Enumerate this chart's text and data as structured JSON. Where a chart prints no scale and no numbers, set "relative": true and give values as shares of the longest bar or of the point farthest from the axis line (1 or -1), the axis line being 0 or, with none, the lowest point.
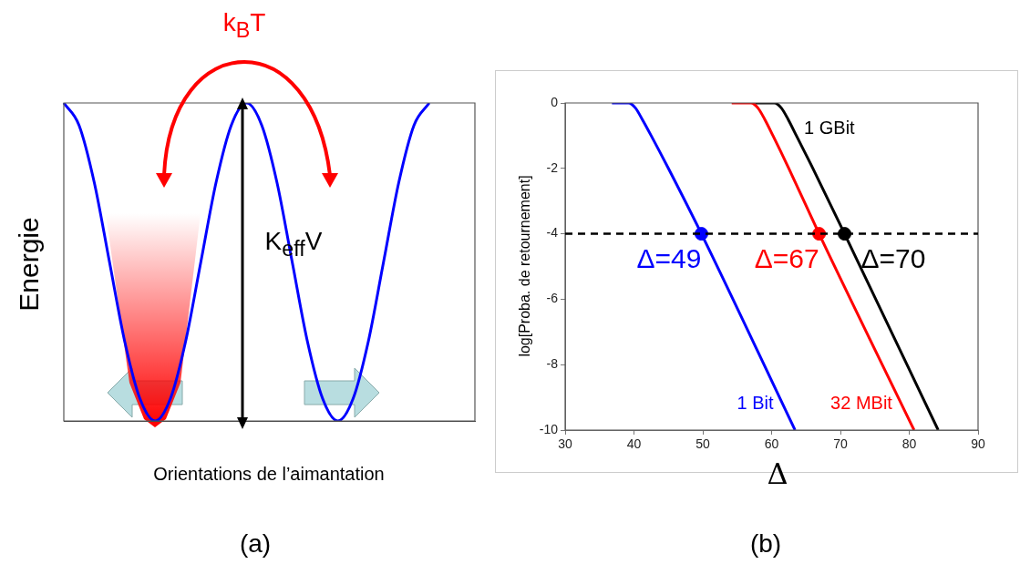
{
  "chart_data": [
    {
      "type": "line",
      "relative": true,
      "xlabel": "Orientations de l’aimantation",
      "ylabel": "Energie",
      "categories": [
        null,
        null,
        null,
        null,
        null,
        null,
        null,
        null,
        null,
        null,
        null,
        null,
        null,
        null,
        null,
        null,
        null,
        null,
        null,
        null,
        null,
        null,
        null,
        null,
        null,
        null,
        null,
        null
      ],
      "series": [
        {
          "color": "#0000ff",
          "values": [
            1,
            0.93,
            0.75,
            0.5,
            0.25,
            0.07,
            0,
            0.07,
            0.25,
            0.5,
            0.75,
            0.93,
            1,
            0.93,
            0.75,
            0.5,
            0.25,
            0.07,
            0,
            0.07,
            0.25,
            0.5,
            0.75,
            0.93,
            1,
            null,
            null,
            null
          ]
        }
      ],
      "annotations": [
        "k$_{B}$T",
        "K$_{eff}$V",
        "(a)"
      ]
    },
    {
      "type": "line",
      "xlabel": "Δ",
      "ylabel": "log[Proba. de retournement]",
      "xlim": [
        30,
        90
      ],
      "xticks": [
        30,
        40,
        50,
        60,
        70,
        80,
        90
      ],
      "ylim": [
        -10,
        0
      ],
      "yticks": [
        -10,
        -8,
        -6,
        -4,
        -2,
        0
      ],
      "legend": false,
      "series": [
        {
          "name": "1 Bit",
          "color": "#0000ff",
          "x": [
            36.8,
            39.2,
            40.2,
            41.2,
            42.5,
            45,
            49.8,
            63.4
          ],
          "values": [
            0,
            0,
            -0.15,
            -0.5,
            -1,
            -2,
            -4,
            -10
          ]
        },
        {
          "name": "32 MBit",
          "color": "#ff0000",
          "x": [
            54.2,
            57,
            58,
            59,
            60.2,
            62.5,
            66.9,
            80.7
          ],
          "values": [
            0,
            0,
            -0.15,
            -0.5,
            -1,
            -2,
            -4,
            -10
          ]
        },
        {
          "name": "1 GBit",
          "color": "#000000",
          "x": [
            57.6,
            60.4,
            61.4,
            62.4,
            63.6,
            66,
            70.6,
            84.2
          ],
          "values": [
            0,
            0,
            -0.15,
            -0.5,
            -1,
            -2,
            -4,
            -10
          ]
        },
        {
          "type": "scatter",
          "x": [
            49.8,
            66.9,
            70.6
          ],
          "values": [
            -4,
            -4,
            -4
          ],
          "colors": [
            "#0000ff",
            "#ff0000",
            "#000000"
          ]
        }
      ],
      "ref_lines": [
        {
          "axis": "y",
          "value": -4,
          "color": "#000000",
          "line_style": "dashed"
        }
      ],
      "annotations": [
        {
          "text": "Δ=49",
          "x": 49.8,
          "y": -4
        },
        {
          "text": "Δ=67",
          "x": 66.9,
          "y": -4
        },
        {
          "text": "Δ=70",
          "x": 70.6,
          "y": -4
        },
        "(b)"
      ]
    }
  ]
}
